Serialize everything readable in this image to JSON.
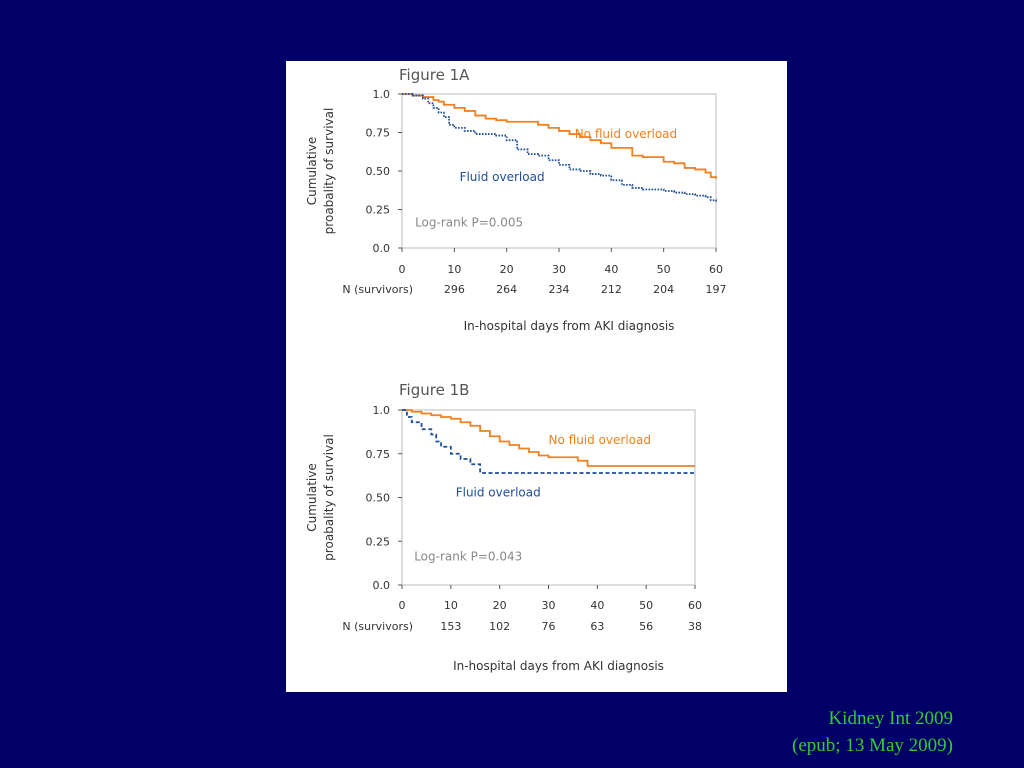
{
  "slide": {
    "background": "#000066",
    "citation": {
      "line1": "Kidney Int 2009",
      "line2": "(epub; 13 May 2009)",
      "color": "#33cc33"
    }
  },
  "colors": {
    "no_fluid_overload": "#f08020",
    "fluid_overload": "#1f4e9a",
    "axis_text": "#333333",
    "title_text": "#555555"
  },
  "chart_data": [
    {
      "type": "line",
      "panel_title": "Figure 1A",
      "ylabel": [
        "Cumulative",
        "proabality of survival"
      ],
      "xlabel": "In-hospital days from AKI diagnosis",
      "x_ticks": [
        0,
        10,
        20,
        30,
        40,
        50,
        60
      ],
      "y_ticks": [
        0.0,
        0.25,
        0.5,
        0.75,
        1.0
      ],
      "y_tick_labels": [
        "0.0",
        "0.25",
        "0.50",
        "0.75",
        "1.0"
      ],
      "xlim": [
        0,
        60
      ],
      "ylim": [
        0,
        1
      ],
      "survivors_label": "N (survivors)",
      "survivors": [
        {
          "x": 10,
          "n": "296"
        },
        {
          "x": 20,
          "n": "264"
        },
        {
          "x": 30,
          "n": "234"
        },
        {
          "x": 40,
          "n": "212"
        },
        {
          "x": 50,
          "n": "204"
        },
        {
          "x": 60,
          "n": "197"
        }
      ],
      "annotation": "Log-rank P=0.005",
      "series": [
        {
          "name": "No fluid overload",
          "style": "solid",
          "x": [
            0,
            2,
            4,
            6,
            7,
            8,
            10,
            12,
            14,
            16,
            18,
            20,
            24,
            26,
            28,
            30,
            32,
            34,
            36,
            38,
            40,
            42,
            44,
            46,
            50,
            52,
            54,
            56,
            58,
            59,
            60
          ],
          "y": [
            1.0,
            0.99,
            0.98,
            0.96,
            0.95,
            0.93,
            0.91,
            0.89,
            0.86,
            0.84,
            0.83,
            0.82,
            0.82,
            0.8,
            0.78,
            0.76,
            0.74,
            0.72,
            0.7,
            0.68,
            0.65,
            0.65,
            0.6,
            0.59,
            0.56,
            0.55,
            0.52,
            0.51,
            0.49,
            0.46,
            0.45
          ]
        },
        {
          "name": "Fluid overload",
          "style": "dotted",
          "x": [
            0,
            2,
            4,
            5,
            6,
            7,
            8,
            9,
            10,
            12,
            14,
            18,
            20,
            22,
            24,
            26,
            28,
            30,
            32,
            34,
            36,
            38,
            40,
            42,
            44,
            46,
            50,
            52,
            54,
            56,
            58,
            59,
            60
          ],
          "y": [
            1.0,
            0.99,
            0.97,
            0.94,
            0.91,
            0.88,
            0.85,
            0.8,
            0.78,
            0.76,
            0.74,
            0.73,
            0.7,
            0.64,
            0.61,
            0.6,
            0.57,
            0.54,
            0.51,
            0.5,
            0.48,
            0.47,
            0.44,
            0.41,
            0.39,
            0.38,
            0.37,
            0.36,
            0.35,
            0.34,
            0.33,
            0.31,
            0.3
          ]
        }
      ],
      "series_labels": [
        {
          "text": "No fluid overload",
          "series": 0,
          "x": 33,
          "y": 0.74
        },
        {
          "text": "Fluid overload",
          "series": 1,
          "x": 11,
          "y": 0.46
        }
      ]
    },
    {
      "type": "line",
      "panel_title": "Figure 1B",
      "ylabel": [
        "Cumulative",
        "proabality of survival"
      ],
      "xlabel": "In-hospital days from AKI diagnosis",
      "x_ticks": [
        0,
        10,
        20,
        30,
        40,
        50,
        60
      ],
      "y_ticks": [
        0.0,
        0.25,
        0.5,
        0.75,
        1.0
      ],
      "y_tick_labels": [
        "0.0",
        "0.25",
        "0.50",
        "0.75",
        "1.0"
      ],
      "xlim": [
        0,
        60
      ],
      "ylim": [
        0,
        1
      ],
      "survivors_label": "N (survivors)",
      "survivors": [
        {
          "x": 10,
          "n": "153"
        },
        {
          "x": 20,
          "n": "102"
        },
        {
          "x": 30,
          "n": "76"
        },
        {
          "x": 40,
          "n": "63"
        },
        {
          "x": 50,
          "n": "56"
        },
        {
          "x": 60,
          "n": "38"
        }
      ],
      "annotation": "Log-rank P=0.043",
      "series": [
        {
          "name": "No fluid overload",
          "style": "solid",
          "x": [
            0,
            2,
            4,
            6,
            8,
            10,
            12,
            14,
            16,
            18,
            20,
            22,
            24,
            26,
            28,
            30,
            32,
            36,
            38,
            60
          ],
          "y": [
            1.0,
            0.99,
            0.98,
            0.97,
            0.96,
            0.95,
            0.93,
            0.91,
            0.88,
            0.85,
            0.82,
            0.8,
            0.78,
            0.76,
            0.74,
            0.73,
            0.73,
            0.71,
            0.68,
            0.68
          ]
        },
        {
          "name": "Fluid overload",
          "style": "dashed",
          "x": [
            0,
            1,
            2,
            4,
            6,
            7,
            8,
            10,
            12,
            14,
            16,
            60
          ],
          "y": [
            1.0,
            0.96,
            0.93,
            0.89,
            0.86,
            0.82,
            0.79,
            0.75,
            0.72,
            0.69,
            0.64,
            0.64
          ]
        }
      ],
      "series_labels": [
        {
          "text": "No fluid overload",
          "series": 0,
          "x": 30,
          "y": 0.83
        },
        {
          "text": "Fluid overload",
          "series": 1,
          "x": 11,
          "y": 0.53
        }
      ]
    }
  ]
}
